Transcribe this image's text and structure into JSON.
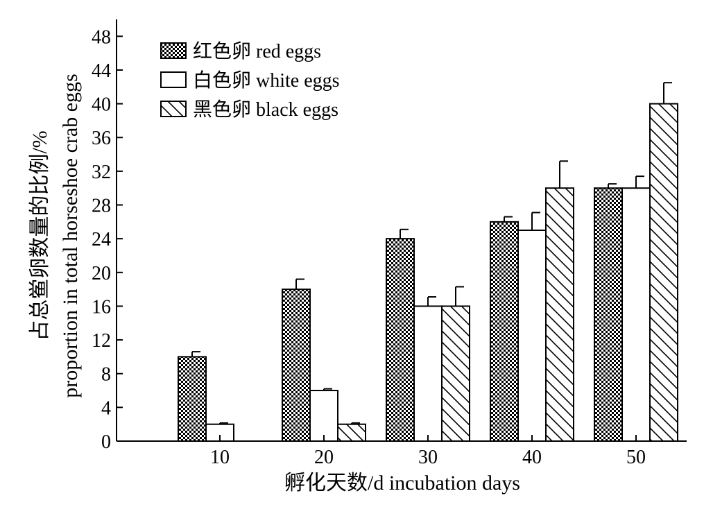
{
  "chart_data": {
    "type": "bar",
    "categories": [
      "10",
      "20",
      "30",
      "40",
      "50"
    ],
    "series": [
      {
        "name": "红色卵 red eggs",
        "pattern": "checker",
        "values": [
          10,
          18,
          24,
          26,
          30
        ],
        "errors": [
          0.6,
          1.2,
          1.1,
          0.6,
          0.5
        ]
      },
      {
        "name": "白色卵 white eggs",
        "pattern": "plain",
        "values": [
          2,
          6,
          16,
          25,
          30
        ],
        "errors": [
          0.15,
          0.2,
          1.1,
          2.1,
          1.4
        ]
      },
      {
        "name": "黑色卵 black eggs",
        "pattern": "diagonal",
        "values": [
          0,
          2,
          16,
          30,
          40
        ],
        "errors": [
          0,
          0.15,
          2.3,
          3.2,
          2.5
        ]
      }
    ],
    "xlabel": "孵化天数/d incubation days",
    "ylabel_line1": "占总鲎卵数量的比例/%",
    "ylabel_line2": "proportion in total horseshoe crab eggs",
    "ylim": [
      0,
      50
    ],
    "yticks": [
      0,
      4,
      8,
      12,
      16,
      20,
      24,
      28,
      32,
      36,
      40,
      44,
      48
    ],
    "grid": false,
    "legend_position": "top-left",
    "colors": {
      "stroke": "#000000",
      "fill": "#ffffff"
    }
  }
}
